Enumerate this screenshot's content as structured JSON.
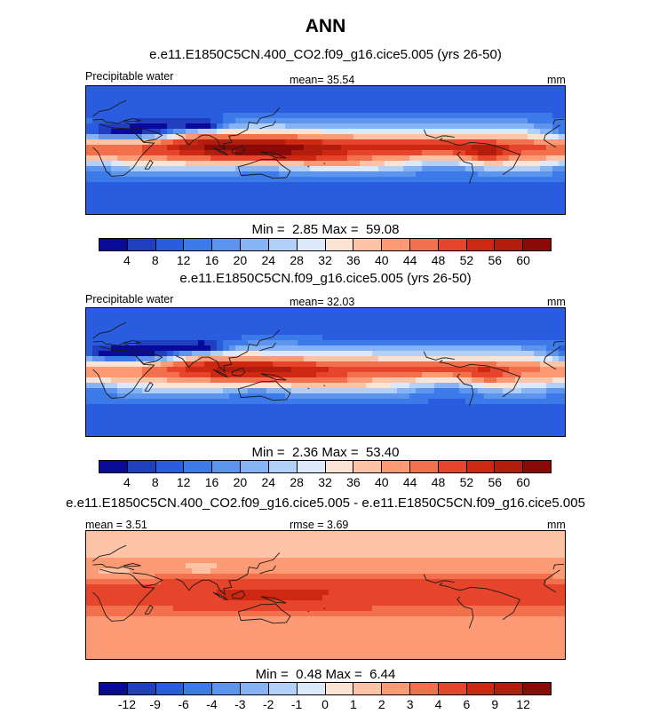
{
  "title": "ANN",
  "panels": [
    {
      "run_title": "e.e11.E1850C5CN.400_CO2.f09_g16.cice5.005 (yrs 26-50)",
      "left_label": "Precipitable water",
      "center_label": "mean=  35.54",
      "right_label": "mm",
      "min_label": "Min =",
      "min_value": "2.85",
      "max_label": "Max =",
      "max_value": "59.08",
      "colorbar_ticks": [
        "4",
        "8",
        "12",
        "16",
        "20",
        "24",
        "28",
        "32",
        "36",
        "40",
        "44",
        "48",
        "52",
        "56",
        "60"
      ],
      "field": "absolute",
      "intensity": 1.0
    },
    {
      "run_title": "e.e11.E1850C5CN.f09_g16.cice5.005 (yrs 26-50)",
      "left_label": "Precipitable water",
      "center_label": "mean=  32.03",
      "right_label": "mm",
      "min_label": "Min =",
      "min_value": "2.36",
      "max_label": "Max =",
      "max_value": "53.40",
      "colorbar_ticks": [
        "4",
        "8",
        "12",
        "16",
        "20",
        "24",
        "28",
        "32",
        "36",
        "40",
        "44",
        "48",
        "52",
        "56",
        "60"
      ],
      "field": "absolute",
      "intensity": 0.9
    },
    {
      "run_title": "e.e11.E1850C5CN.400_CO2.f09_g16.cice5.005 - e.e11.E1850C5CN.f09_g16.cice5.005",
      "left_label": "mean =   3.51",
      "center_label": "rmse =   3.69",
      "right_label": "mm",
      "min_label": "Min =",
      "min_value": "0.48",
      "max_label": "Max =",
      "max_value": "6.44",
      "colorbar_ticks": [
        "-12",
        "-9",
        "-6",
        "-4",
        "-3",
        "-2",
        "-1",
        "0",
        "1",
        "2",
        "3",
        "4",
        "6",
        "9",
        "12"
      ],
      "field": "difference",
      "intensity": 1.0
    }
  ],
  "colors": {
    "colorbar": [
      "#0a0a9a",
      "#1f3fbf",
      "#2a5ce0",
      "#3b7ae8",
      "#5d95ee",
      "#86b3f3",
      "#b3d0f8",
      "#dbe9fb",
      "#fbe3d3",
      "#fcc3a6",
      "#fb9a75",
      "#f3704c",
      "#e6452b",
      "#cf2812",
      "#b31d0e",
      "#8a0a08"
    ],
    "coastline": "#1a1a1a"
  }
}
